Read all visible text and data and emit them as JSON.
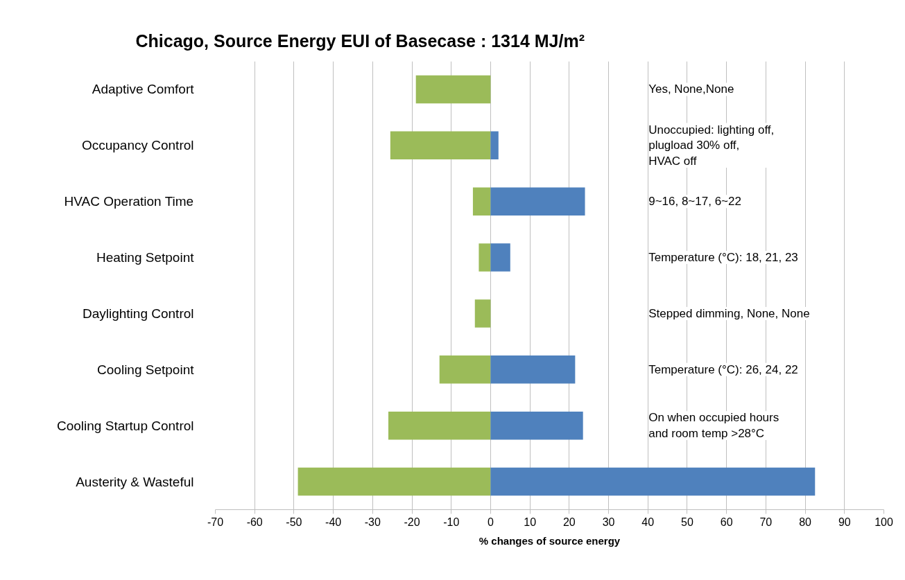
{
  "chart_data": {
    "type": "bar",
    "orientation": "horizontal",
    "stacked": true,
    "title": "Chicago, Source Energy EUI of Basecase : 1314 MJ/m²",
    "xlabel": "% changes of source energy",
    "categories": [
      "Adaptive Comfort",
      "Occupancy Control",
      "HVAC Operation Time",
      "Heating Setpoint",
      "Daylighting Control",
      "Cooling Setpoint",
      "Cooling Startup Control",
      "Austerity & Wasteful"
    ],
    "series": [
      {
        "color": "#9bbb59",
        "values": [
          -19,
          -25.5,
          -4.5,
          -3,
          -4,
          -13,
          -26,
          -49
        ]
      },
      {
        "color": "#4f81bd",
        "values": [
          null,
          2,
          24,
          5,
          null,
          21.5,
          23.5,
          82.5
        ]
      }
    ],
    "xlim": [
      -70,
      100
    ],
    "xticks": [
      -70,
      -60,
      -50,
      -40,
      -30,
      -20,
      -10,
      0,
      10,
      20,
      30,
      40,
      50,
      60,
      70,
      80,
      90,
      100
    ],
    "grid": "x",
    "annotations": [
      "Yes, None,None",
      "Unoccupied: lighting off,\nplugload 30% off,\nHVAC off",
      "9~16, 8~17, 6~22",
      "Temperature (°C):  18, 21, 23",
      "Stepped dimming, None, None",
      "Temperature (°C):  26, 24, 22",
      "On when occupied hours\nand room temp >28°C"
    ]
  }
}
